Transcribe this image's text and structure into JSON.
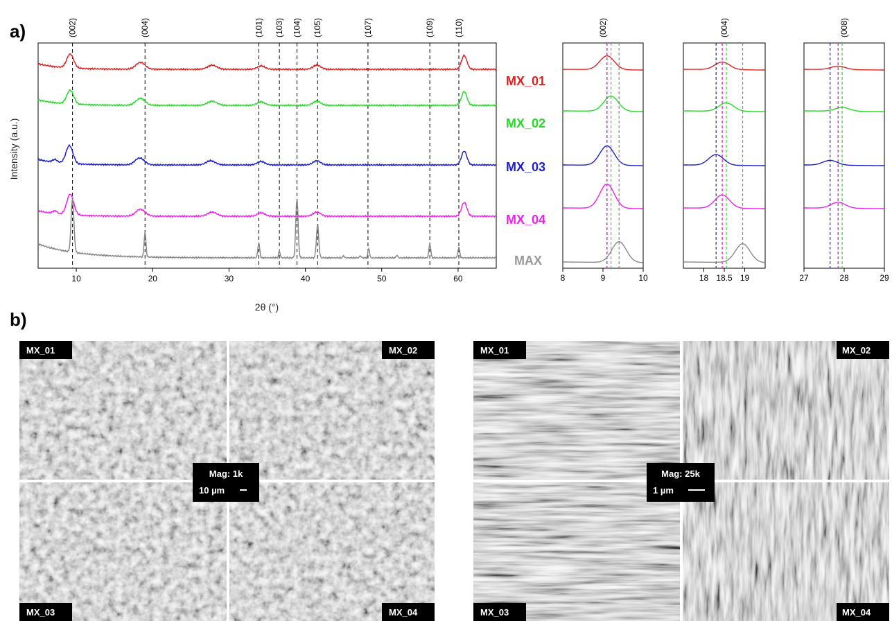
{
  "panels": {
    "a": "a)",
    "b": "b)"
  },
  "xrd": {
    "ylabel": "Intensity (a.u.)",
    "xlabel": "2θ (°)",
    "main_ticks": [
      "10",
      "20",
      "30",
      "40",
      "50",
      "60"
    ],
    "peak_labels": [
      "(002)",
      "(004)",
      "(101)",
      "(103)",
      "(104)",
      "(105)",
      "(107)",
      "(109)",
      "(110)"
    ],
    "samples": [
      "MX_01",
      "MX_02",
      "MX_03",
      "MX_04",
      "MAX"
    ],
    "sample_colors": [
      "#e02020",
      "#22dd22",
      "#1f1fcc",
      "#ee22ee",
      "#888888"
    ],
    "zoom1": {
      "title": "(002)",
      "ticks": [
        "8",
        "9",
        "10"
      ]
    },
    "zoom2": {
      "title": "(004)",
      "ticks": [
        "18",
        "18.5",
        "19"
      ]
    },
    "zoom3": {
      "title": "(008)",
      "ticks": [
        "27",
        "28",
        "29"
      ]
    }
  },
  "chart_data": [
    {
      "type": "line",
      "title": "",
      "xlabel": "2θ (°)",
      "ylabel": "Intensity (a.u.)",
      "xlim": [
        5,
        65
      ],
      "grid": false,
      "series": [
        {
          "name": "MX_01",
          "x": [
            6,
            9.2,
            18.4,
            27.8,
            34.2,
            41.5,
            60.8
          ],
          "values": [
            0.82,
            0.93,
            0.84,
            0.82,
            0.81,
            0.81,
            0.85
          ]
        },
        {
          "name": "MX_02",
          "x": [
            6,
            9.2,
            18.4,
            27.8,
            34.2,
            41.5,
            60.8
          ],
          "values": [
            0.66,
            0.77,
            0.69,
            0.66,
            0.65,
            0.66,
            0.7
          ]
        },
        {
          "name": "MX_03",
          "x": [
            6,
            9.1,
            18.3,
            27.6,
            34.2,
            41.5,
            60.8
          ],
          "values": [
            0.5,
            0.63,
            0.53,
            0.5,
            0.49,
            0.49,
            0.54
          ]
        },
        {
          "name": "MX_04",
          "x": [
            6,
            9.2,
            18.4,
            27.8,
            34.2,
            41.5,
            60.8
          ],
          "values": [
            0.33,
            0.48,
            0.37,
            0.34,
            0.33,
            0.33,
            0.38
          ]
        },
        {
          "name": "MAX",
          "x": [
            5,
            9.5,
            19.0,
            33.9,
            36.5,
            38.9,
            41.7,
            48.3,
            56.3,
            60.1
          ],
          "values": [
            0.12,
            0.32,
            0.14,
            0.08,
            0.06,
            0.35,
            0.15,
            0.05,
            0.07,
            0.06
          ]
        }
      ]
    },
    {
      "type": "line",
      "title": "(002)",
      "xlim": [
        8,
        10
      ],
      "series": [
        {
          "name": "MX_01",
          "peak": 9.1
        },
        {
          "name": "MX_02",
          "peak": 9.2
        },
        {
          "name": "MX_03",
          "peak": 9.1
        },
        {
          "name": "MX_04",
          "peak": 9.1
        },
        {
          "name": "MAX",
          "peak": 9.4
        }
      ]
    },
    {
      "type": "line",
      "title": "(004)",
      "xlim": [
        17.5,
        19.5
      ],
      "series": [
        {
          "name": "MX_01",
          "peak": 18.45
        },
        {
          "name": "MX_02",
          "peak": 18.55
        },
        {
          "name": "MX_03",
          "peak": 18.3
        },
        {
          "name": "MX_04",
          "peak": 18.45
        },
        {
          "name": "MAX",
          "peak": 18.95
        }
      ]
    },
    {
      "type": "line",
      "title": "(008)",
      "xlim": [
        27,
        29
      ],
      "series": [
        {
          "name": "MX_01",
          "peak": 27.85
        },
        {
          "name": "MX_02",
          "peak": 27.95
        },
        {
          "name": "MX_03",
          "peak": 27.65
        },
        {
          "name": "MX_04",
          "peak": 27.85
        }
      ]
    }
  ],
  "sem": {
    "low_mag": {
      "labels": [
        "MX_01",
        "MX_02",
        "MX_03",
        "MX_04"
      ],
      "mag": "Mag: 1k",
      "scale": "10 µm"
    },
    "high_mag": {
      "labels": [
        "MX_01",
        "MX_02",
        "MX_03",
        "MX_04"
      ],
      "mag": "Mag: 25k",
      "scale": "1 µm"
    }
  }
}
